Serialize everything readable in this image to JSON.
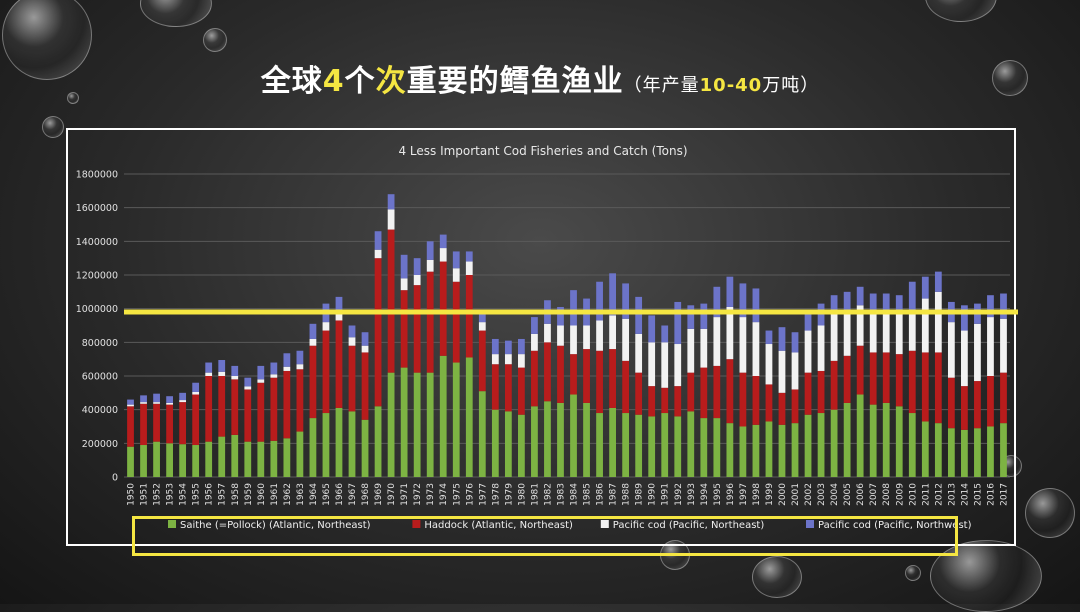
{
  "slide": {
    "title_prefix": "全球",
    "title_num": "4",
    "title_mid1": "个",
    "title_hl": "次",
    "title_mid2": "重要的鳕鱼渔业",
    "title_paren_open": "（年产量",
    "title_paren_num": "10-40",
    "title_paren_close": "万吨）"
  },
  "colors": {
    "saithe": "#7db343",
    "haddock": "#b81c1c",
    "pacific_ne": "#f2f2f2",
    "pacific_nw": "#6c74c9",
    "highlight": "#f5e642"
  },
  "chart_data": {
    "type": "bar",
    "stacked": true,
    "title": "4 Less Important Cod Fisheries and Catch (Tons)",
    "ylim": [
      0,
      1800000
    ],
    "yticks": [
      0,
      200000,
      400000,
      600000,
      800000,
      1000000,
      1200000,
      1400000,
      1600000,
      1800000
    ],
    "grid": true,
    "legend_position": "bottom",
    "reference_line": 980000,
    "categories": [
      "1950",
      "1951",
      "1952",
      "1953",
      "1954",
      "1955",
      "1956",
      "1957",
      "1958",
      "1959",
      "1960",
      "1961",
      "1962",
      "1963",
      "1964",
      "1965",
      "1966",
      "1967",
      "1968",
      "1969",
      "1970",
      "1971",
      "1972",
      "1973",
      "1974",
      "1975",
      "1976",
      "1977",
      "1978",
      "1979",
      "1980",
      "1981",
      "1982",
      "1983",
      "1984",
      "1985",
      "1986",
      "1987",
      "1988",
      "1989",
      "1990",
      "1991",
      "1992",
      "1993",
      "1994",
      "1995",
      "1996",
      "1997",
      "1998",
      "1999",
      "2000",
      "2001",
      "2002",
      "2003",
      "2004",
      "2005",
      "2006",
      "2007",
      "2008",
      "2009",
      "2010",
      "2011",
      "2012",
      "2013",
      "2014",
      "2015",
      "2016",
      "2017"
    ],
    "series": [
      {
        "name": "Saithe (=Pollock) (Atlantic, Northeast)",
        "color": "#7db343",
        "values": [
          180000,
          190000,
          210000,
          200000,
          195000,
          190000,
          210000,
          240000,
          250000,
          210000,
          210000,
          215000,
          230000,
          270000,
          350000,
          380000,
          410000,
          390000,
          340000,
          420000,
          620000,
          650000,
          620000,
          620000,
          720000,
          680000,
          710000,
          510000,
          400000,
          390000,
          370000,
          420000,
          450000,
          440000,
          490000,
          440000,
          380000,
          410000,
          380000,
          370000,
          360000,
          380000,
          360000,
          390000,
          350000,
          350000,
          320000,
          300000,
          310000,
          330000,
          310000,
          320000,
          370000,
          380000,
          400000,
          440000,
          490000,
          430000,
          440000,
          420000,
          380000,
          330000,
          320000,
          290000,
          280000,
          290000,
          300000,
          320000
        ]
      },
      {
        "name": "Haddock (Atlantic, Northeast)",
        "color": "#b81c1c",
        "values": [
          240000,
          245000,
          225000,
          230000,
          250000,
          300000,
          390000,
          360000,
          330000,
          310000,
          350000,
          375000,
          400000,
          370000,
          430000,
          490000,
          520000,
          390000,
          400000,
          880000,
          850000,
          460000,
          520000,
          600000,
          560000,
          480000,
          490000,
          360000,
          270000,
          280000,
          280000,
          330000,
          350000,
          340000,
          240000,
          320000,
          370000,
          350000,
          310000,
          250000,
          180000,
          150000,
          180000,
          230000,
          300000,
          310000,
          380000,
          320000,
          290000,
          220000,
          190000,
          200000,
          250000,
          250000,
          290000,
          280000,
          290000,
          310000,
          300000,
          310000,
          370000,
          410000,
          420000,
          300000,
          260000,
          280000,
          300000,
          300000
        ]
      },
      {
        "name": "Pacific cod (Pacific, Northeast)",
        "color": "#f2f2f2",
        "values": [
          10000,
          10000,
          10000,
          10000,
          12000,
          15000,
          20000,
          25000,
          20000,
          18000,
          20000,
          20000,
          25000,
          30000,
          40000,
          50000,
          50000,
          50000,
          40000,
          50000,
          120000,
          70000,
          60000,
          70000,
          80000,
          80000,
          80000,
          50000,
          60000,
          60000,
          80000,
          100000,
          110000,
          120000,
          170000,
          140000,
          180000,
          200000,
          250000,
          230000,
          260000,
          270000,
          250000,
          260000,
          230000,
          290000,
          310000,
          330000,
          320000,
          240000,
          250000,
          220000,
          250000,
          270000,
          280000,
          270000,
          240000,
          250000,
          250000,
          250000,
          220000,
          320000,
          360000,
          330000,
          330000,
          340000,
          350000,
          320000
        ]
      },
      {
        "name": "Pacific cod (Pacific, Northwest)",
        "color": "#6c74c9",
        "values": [
          30000,
          40000,
          50000,
          40000,
          43000,
          55000,
          60000,
          70000,
          60000,
          52000,
          80000,
          70000,
          80000,
          80000,
          90000,
          110000,
          90000,
          70000,
          80000,
          110000,
          90000,
          140000,
          100000,
          110000,
          80000,
          100000,
          60000,
          60000,
          90000,
          80000,
          90000,
          100000,
          140000,
          110000,
          210000,
          160000,
          230000,
          250000,
          210000,
          220000,
          160000,
          100000,
          250000,
          140000,
          150000,
          180000,
          180000,
          200000,
          200000,
          80000,
          140000,
          120000,
          100000,
          130000,
          110000,
          110000,
          110000,
          100000,
          100000,
          100000,
          190000,
          130000,
          120000,
          120000,
          150000,
          120000,
          130000,
          150000
        ]
      }
    ]
  }
}
